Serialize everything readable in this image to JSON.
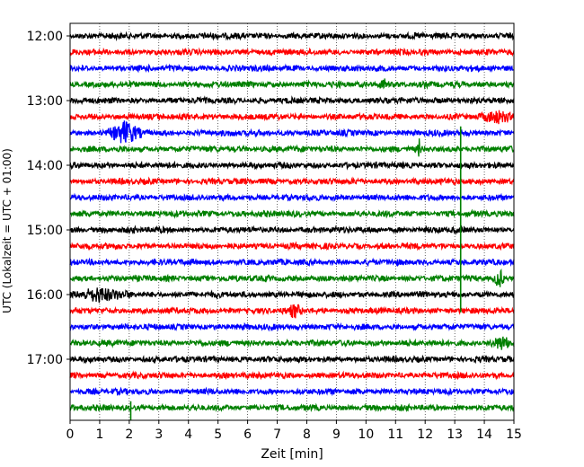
{
  "chart_data": {
    "type": "line",
    "title": "",
    "xlabel": "Zeit  [min]",
    "ylabel": "UTC (Lokalzeit = UTC + 01:00)",
    "xlim": [
      0,
      15
    ],
    "xticks": [
      0,
      1,
      2,
      3,
      4,
      5,
      6,
      7,
      8,
      9,
      10,
      11,
      12,
      13,
      14,
      15
    ],
    "grid": "vertical dotted",
    "yticks": [
      {
        "time": "12:00",
        "trace": 0
      },
      {
        "time": "13:00",
        "trace": 4
      },
      {
        "time": "14:00",
        "trace": 8
      },
      {
        "time": "15:00",
        "trace": 12
      },
      {
        "time": "16:00",
        "trace": 16
      },
      {
        "time": "17:00",
        "trace": 20
      }
    ],
    "trace_interval_min": 15,
    "trace_count": 24,
    "trace_colors": [
      "#000000",
      "#ff0000",
      "#0000ff",
      "#008000"
    ],
    "events": [
      {
        "trace": 6,
        "start_min": 1.3,
        "end_min": 2.4,
        "amplitude": 0.7
      },
      {
        "trace": 5,
        "start_min": 13.9,
        "end_min": 15.0,
        "amplitude": 0.35
      },
      {
        "trace": 15,
        "start_min": 14.3,
        "end_min": 14.7,
        "amplitude": 0.55
      },
      {
        "trace": 7,
        "start_min": 11.75,
        "end_min": 11.85,
        "amplitude": 0.5
      },
      {
        "trace": 3,
        "start_min": 10.4,
        "end_min": 10.8,
        "amplitude": 0.35
      },
      {
        "trace": 17,
        "start_min": 7.3,
        "end_min": 7.9,
        "amplitude": 0.35
      },
      {
        "trace": 16,
        "start_min": 0.0,
        "end_min": 2.0,
        "amplitude": 0.35
      },
      {
        "trace": 19,
        "start_min": 14.2,
        "end_min": 15.0,
        "amplitude": 0.35
      }
    ],
    "spikes": [
      {
        "trace_top": 6,
        "trace_bottom": 17,
        "at_min": 13.2,
        "color": "#008000"
      },
      {
        "trace_top": 23,
        "trace_bottom": 24,
        "at_min": 2.05,
        "color": "#008000"
      }
    ]
  }
}
